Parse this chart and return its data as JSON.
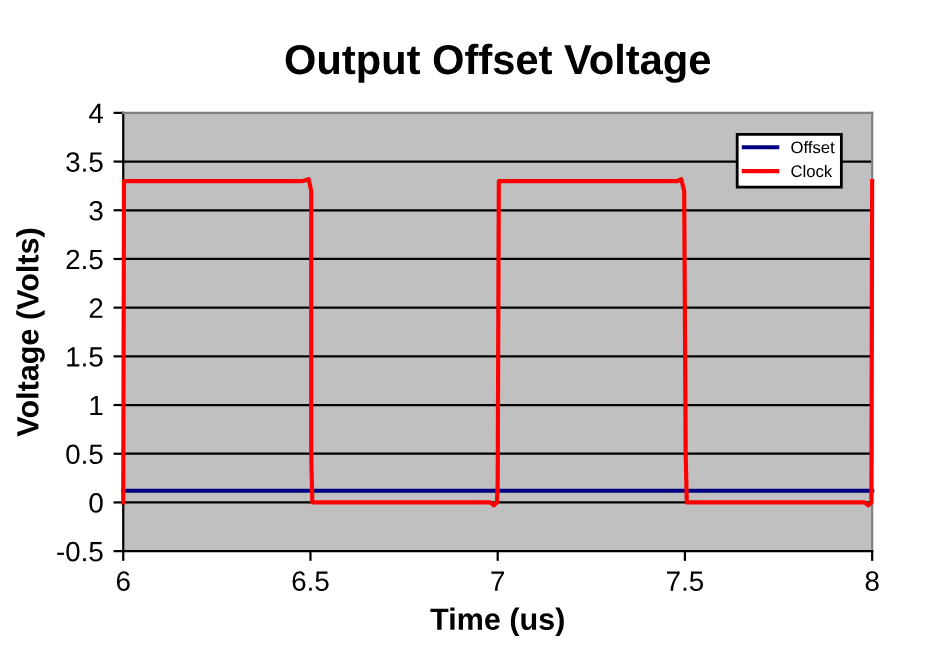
{
  "chart_data": {
    "type": "line",
    "title": "Output Offset Voltage",
    "xlabel": "Time (us)",
    "ylabel": "Voltage (Volts)",
    "xlim": [
      6,
      8
    ],
    "xticks": [
      6,
      6.5,
      7,
      7.5,
      8
    ],
    "ylim": [
      -0.5,
      4
    ],
    "yticks": [
      -0.5,
      0,
      0.5,
      1,
      1.5,
      2,
      2.5,
      3,
      3.5,
      4
    ],
    "grid": "y",
    "legend": "top right",
    "marker": "none",
    "line_style": "solid",
    "series": [
      {
        "name": "Offset",
        "color": "#000080",
        "x": [
          6,
          8
        ],
        "values": [
          0.12,
          0.12
        ]
      },
      {
        "name": "Clock",
        "color": "#ff0000",
        "x": [
          6,
          6.002,
          6.48,
          6.495,
          6.502,
          6.502,
          6.505,
          6.98,
          6.99,
          6.998,
          7.0,
          7.003,
          7.48,
          7.49,
          7.498,
          7.502,
          7.505,
          7.98,
          7.99,
          7.998,
          8.0
        ],
        "values": [
          0,
          3.3,
          3.3,
          3.32,
          3.2,
          0.5,
          0,
          0,
          -0.03,
          0,
          0.2,
          3.3,
          3.3,
          3.32,
          3.2,
          0.5,
          0,
          0,
          -0.03,
          0,
          3.3
        ]
      }
    ]
  }
}
